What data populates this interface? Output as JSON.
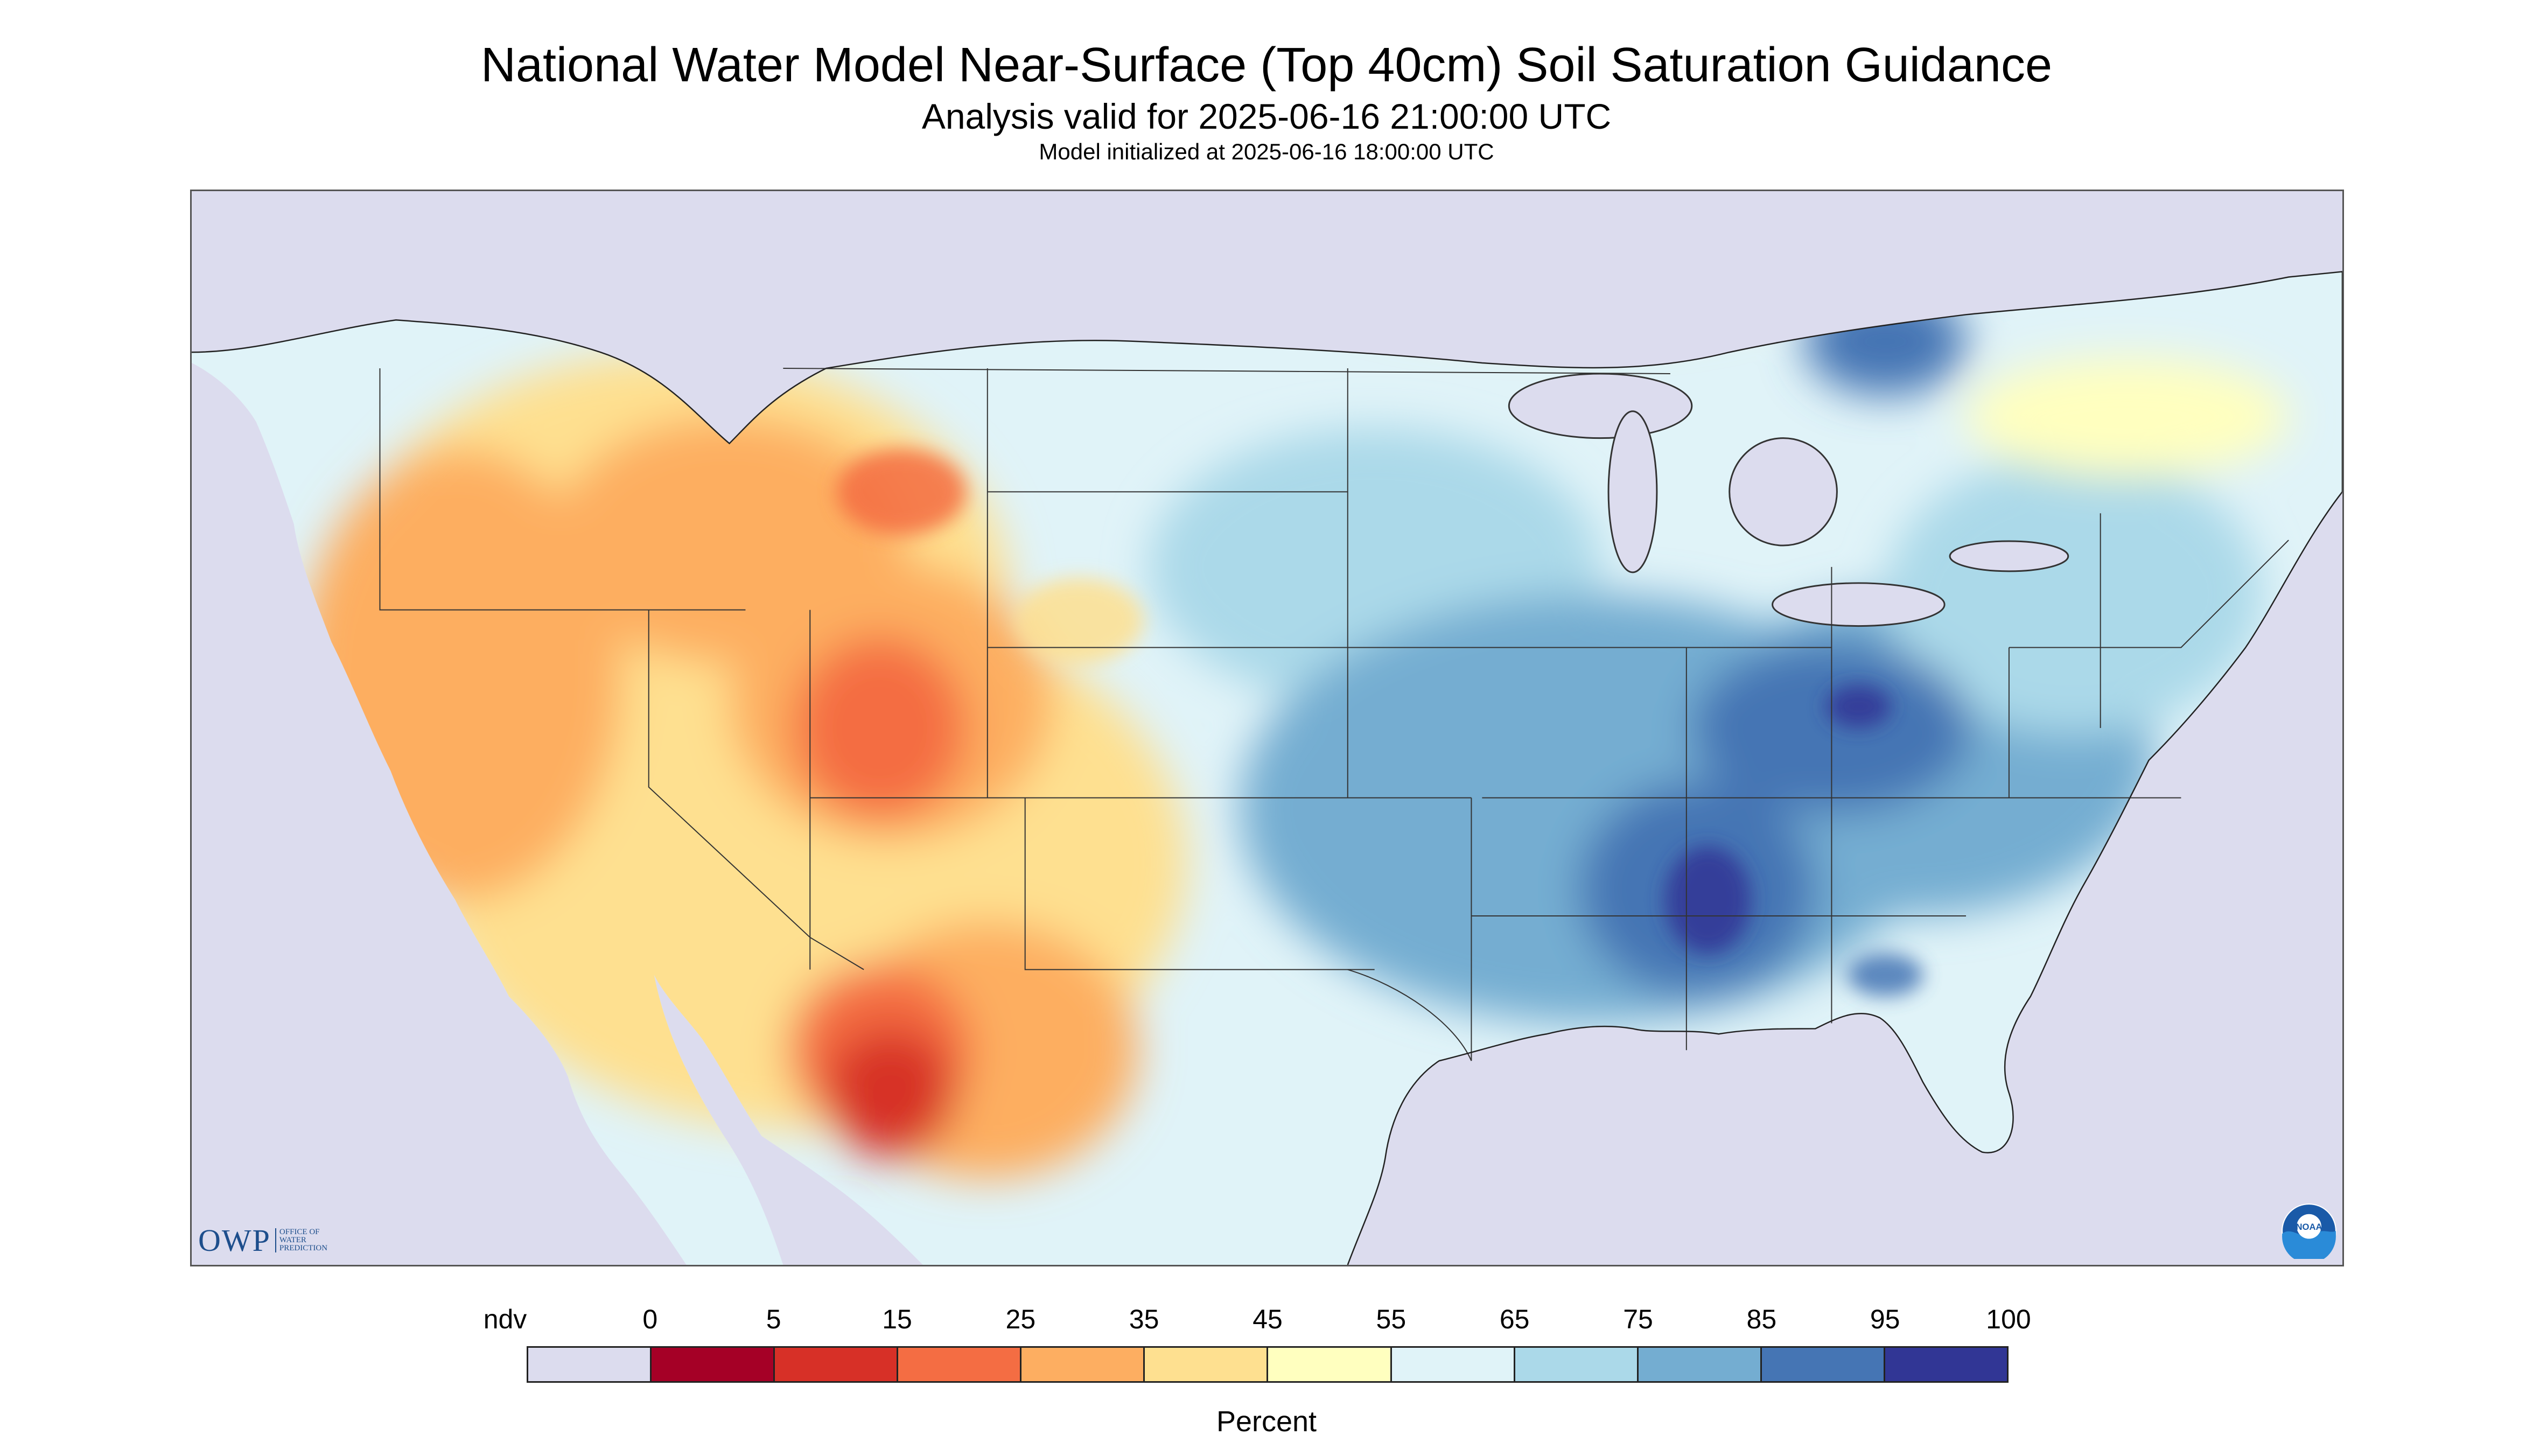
{
  "header": {
    "title": "National Water Model Near-Surface (Top 40cm) Soil Saturation Guidance",
    "analysis_valid": "Analysis valid for 2025-06-16 21:00:00 UTC",
    "model_initialized": "Model initialized at 2025-06-16 18:00:00 UTC"
  },
  "map": {
    "region": "Continental United States with portions of Canada and Mexico",
    "water_color": "#dcdcee",
    "border_color": "#555555",
    "region_pattern": [
      {
        "area": "Northern Rockies / Montana",
        "class": "15-25"
      },
      {
        "area": "Colorado / Utah",
        "class": "15-25"
      },
      {
        "area": "Southwest / New Mexico",
        "class": "25-35"
      },
      {
        "area": "Northwest Mexico / Sonora",
        "class": "5-15"
      },
      {
        "area": "Great Plains west",
        "class": "35-45"
      },
      {
        "area": "Upper Midwest / Dakotas",
        "class": "65-75"
      },
      {
        "area": "Mississippi Valley / Ohio Valley",
        "class": "75-85"
      },
      {
        "area": "Lower Mississippi / Alabama",
        "class": "95-100"
      },
      {
        "area": "Southeast / Carolinas",
        "class": "65-75"
      },
      {
        "area": "Northeast",
        "class": "65-75"
      },
      {
        "area": "Central Canada band",
        "class": "45-55"
      },
      {
        "area": "Hudson Bay lowlands",
        "class": "75-85"
      }
    ]
  },
  "logos": {
    "owp_text": "OWP",
    "owp_subtitle": "OFFICE OF WATER PREDICTION",
    "noaa_text": "NOAA"
  },
  "legend": {
    "labels": [
      "ndv",
      "0",
      "5",
      "15",
      "25",
      "35",
      "45",
      "55",
      "65",
      "75",
      "85",
      "95",
      "100"
    ],
    "colors": [
      "#dcdcee",
      "#a50026",
      "#d73027",
      "#f46d43",
      "#fdae61",
      "#fee090",
      "#ffffbf",
      "#e0f3f8",
      "#abd9e9",
      "#74add1",
      "#4575b4",
      "#313695"
    ],
    "unit": "Percent"
  }
}
